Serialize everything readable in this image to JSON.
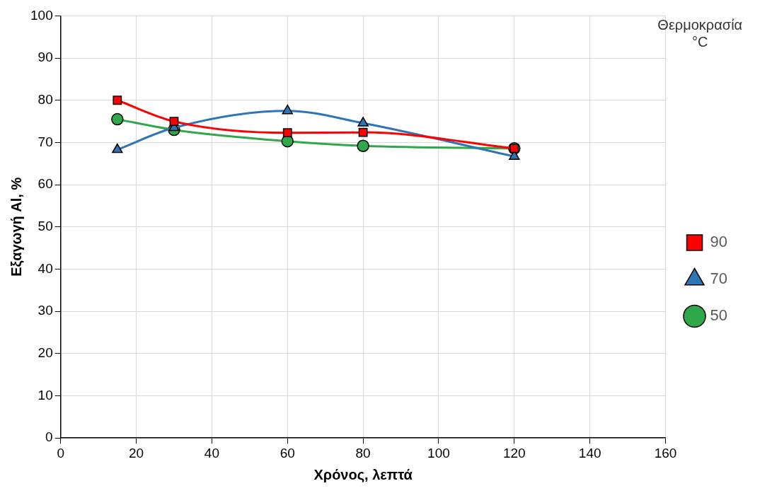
{
  "chart_data": {
    "type": "line",
    "xlabel": "Χρόνος, λεπτά",
    "ylabel": "Εξαγωγή Al, %",
    "legend_title": "Θερμοκρασία °C",
    "x": [
      15,
      30,
      60,
      80,
      120
    ],
    "series": [
      {
        "name": "50",
        "color": "#2ea84a",
        "marker": "circle",
        "values": [
          75.5,
          73,
          70.3,
          69.2,
          68.6
        ]
      },
      {
        "name": "70",
        "color": "#2e75b6",
        "marker": "triangle",
        "values": [
          68.3,
          73.5,
          77.5,
          74.6,
          66.7
        ]
      },
      {
        "name": "90",
        "color": "#ff0000",
        "marker": "square",
        "values": [
          80,
          75,
          72.3,
          72.4,
          68.6
        ]
      }
    ],
    "xlim": [
      0,
      160
    ],
    "xticks": [
      0,
      20,
      40,
      60,
      80,
      100,
      120,
      140,
      160
    ],
    "ylim": [
      0,
      100
    ],
    "yticks": [
      0,
      10,
      20,
      30,
      40,
      50,
      60,
      70,
      80,
      90,
      100
    ],
    "grid": true,
    "legend": "right",
    "line_style": "solid"
  }
}
